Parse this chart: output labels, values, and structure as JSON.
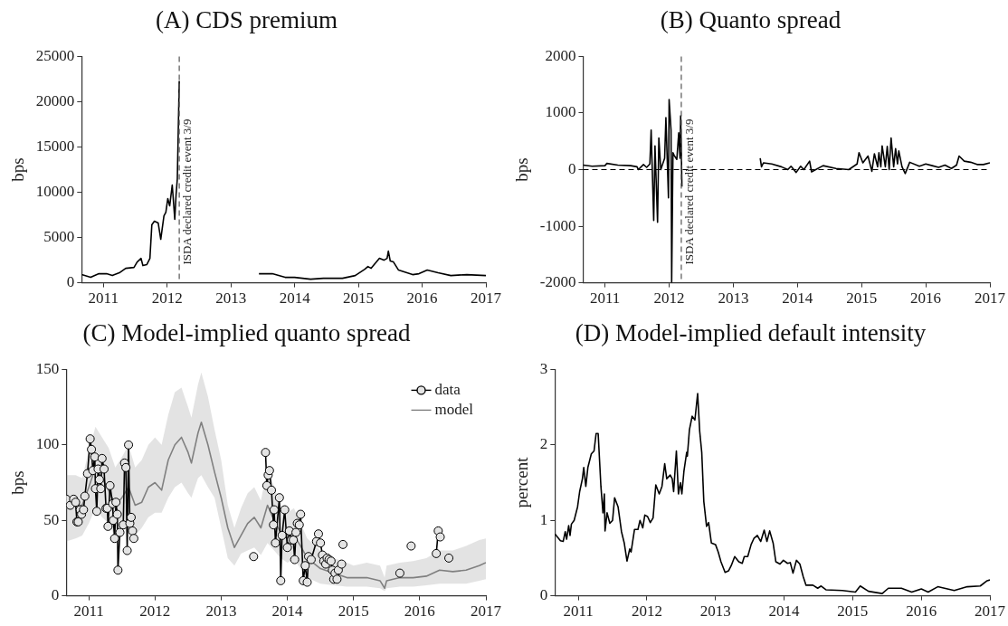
{
  "chart_data": [
    {
      "type": "line",
      "title": "(A) CDS premium",
      "ylabel": "bps",
      "xlim": [
        2010.66,
        2017
      ],
      "xticks": [
        2011,
        2012,
        2013,
        2014,
        2015,
        2016,
        2017
      ],
      "ylim": [
        0,
        25000
      ],
      "yticks": [
        0,
        5000,
        10000,
        15000,
        20000,
        25000
      ],
      "ref_lines": [
        {
          "axis": "x",
          "value": 2012.19,
          "label": "ISDA declared credit event 3/9",
          "color": "#555555",
          "line_style": "dashed"
        }
      ],
      "series": [
        {
          "color": "#000000",
          "x": [
            2010.66,
            2010.8,
            2010.93,
            2011.05,
            2011.14,
            2011.25,
            2011.35,
            2011.48,
            2011.53,
            2011.59,
            2011.62,
            2011.68,
            2011.73,
            2011.76,
            2011.8,
            2011.86,
            2011.9,
            2011.95,
            2011.98,
            2012.01,
            2012.04,
            2012.08,
            2012.12,
            2012.14,
            2012.16,
            2012.19,
            2012.8,
            2013.44,
            2013.65,
            2013.85,
            2014.0,
            2014.25,
            2014.45,
            2014.75,
            2014.95,
            2015.1,
            2015.15,
            2015.2,
            2015.33,
            2015.4,
            2015.45,
            2015.47,
            2015.5,
            2015.55,
            2015.63,
            2015.85,
            2015.95,
            2016.08,
            2016.25,
            2016.45,
            2016.7,
            2017.0
          ],
          "values": [
            900,
            600,
            1000,
            1000,
            800,
            1100,
            1600,
            1700,
            2300,
            2700,
            1900,
            2000,
            2700,
            6400,
            6800,
            6600,
            4800,
            7400,
            7800,
            9300,
            8500,
            10800,
            7000,
            9700,
            11500,
            22300,
            null,
            1000,
            1000,
            600,
            600,
            400,
            500,
            500,
            800,
            1500,
            1800,
            1600,
            2700,
            2500,
            2700,
            3500,
            2400,
            2300,
            1400,
            900,
            1000,
            1400,
            1100,
            800,
            900,
            800
          ]
        }
      ]
    },
    {
      "type": "line",
      "title": "(B) Quanto spread",
      "ylabel": "bps",
      "xlim": [
        2010.66,
        2017
      ],
      "xticks": [
        2011,
        2012,
        2013,
        2014,
        2015,
        2016,
        2017
      ],
      "ylim": [
        -2000,
        2000
      ],
      "yticks": [
        -2000,
        -1000,
        0,
        1000,
        2000
      ],
      "ref_lines": [
        {
          "axis": "x",
          "value": 2012.19,
          "label": "ISDA declared credit event 3/9",
          "color": "#555555",
          "line_style": "dashed"
        },
        {
          "axis": "y",
          "value": 0,
          "color": "#000000",
          "line_style": "dashed"
        }
      ],
      "series": [
        {
          "color": "#000000",
          "x": [
            2010.66,
            2010.8,
            2011.0,
            2011.03,
            2011.2,
            2011.4,
            2011.5,
            2011.52,
            2011.6,
            2011.65,
            2011.7,
            2011.72,
            2011.76,
            2011.78,
            2011.82,
            2011.84,
            2011.87,
            2011.93,
            2011.95,
            2011.99,
            2012.0,
            2012.03,
            2012.04,
            2012.06,
            2012.08,
            2012.12,
            2012.15,
            2012.17,
            2012.18,
            2012.2,
            2012.8,
            2013.42,
            2013.44,
            2013.47,
            2013.6,
            2013.75,
            2013.85,
            2013.9,
            2013.98,
            2014.05,
            2014.1,
            2014.19,
            2014.22,
            2014.4,
            2014.6,
            2014.8,
            2014.93,
            2014.96,
            2015.02,
            2015.1,
            2015.16,
            2015.2,
            2015.25,
            2015.27,
            2015.3,
            2015.32,
            2015.37,
            2015.4,
            2015.43,
            2015.46,
            2015.5,
            2015.53,
            2015.56,
            2015.58,
            2015.63,
            2015.68,
            2015.75,
            2015.9,
            2016.0,
            2016.1,
            2016.2,
            2016.3,
            2016.4,
            2016.48,
            2016.52,
            2016.6,
            2016.7,
            2016.8,
            2016.9,
            2017.0
          ],
          "values": [
            80,
            60,
            70,
            110,
            80,
            70,
            50,
            0,
            90,
            40,
            100,
            700,
            -900,
            420,
            -930,
            560,
            0,
            200,
            920,
            -500,
            1240,
            700,
            -1990,
            300,
            250,
            180,
            650,
            200,
            950,
            -300,
            null,
            200,
            50,
            120,
            100,
            50,
            0,
            60,
            -50,
            60,
            0,
            150,
            -40,
            70,
            20,
            0,
            100,
            300,
            120,
            240,
            -30,
            280,
            50,
            300,
            50,
            420,
            50,
            410,
            0,
            560,
            50,
            370,
            100,
            330,
            50,
            -70,
            130,
            60,
            100,
            70,
            40,
            80,
            20,
            80,
            240,
            150,
            130,
            90,
            90,
            120
          ]
        }
      ]
    },
    {
      "type": "line",
      "title": "(C) Model-implied quanto spread",
      "ylabel": "bps",
      "xlim": [
        2010.66,
        2017
      ],
      "xticks": [
        2011,
        2012,
        2013,
        2014,
        2015,
        2016,
        2017
      ],
      "ylim": [
        0,
        150
      ],
      "yticks": [
        0,
        50,
        100,
        150
      ],
      "legend": "top right",
      "series": [
        {
          "name": "data",
          "color": "#000000",
          "marker": "circle",
          "x": [
            2010.66,
            2010.72,
            2010.77,
            2010.8,
            2010.82,
            2010.84,
            2010.87,
            2010.89,
            2010.92,
            2010.94,
            2010.98,
            2011.02,
            2011.04,
            2011.06,
            2011.09,
            2011.1,
            2011.12,
            2011.14,
            2011.16,
            2011.18,
            2011.2,
            2011.23,
            2011.26,
            2011.28,
            2011.29,
            2011.32,
            2011.36,
            2011.37,
            2011.39,
            2011.41,
            2011.43,
            2011.44,
            2011.47,
            2011.52,
            2011.54,
            2011.56,
            2011.58,
            2011.6,
            2011.62,
            2011.64,
            2011.66,
            2011.68,
            2012.5,
            2013.49,
            2013.6,
            2013.67,
            2013.69,
            2013.71,
            2013.73,
            2013.76,
            2013.79,
            2013.8,
            2013.82,
            2013.88,
            2013.9,
            2013.92,
            2013.96,
            2014.0,
            2014.03,
            2014.06,
            2014.09,
            2014.11,
            2014.13,
            2014.15,
            2014.18,
            2014.2,
            2014.24,
            2014.27,
            2014.3,
            2014.32,
            2014.36,
            2014.44,
            2014.47,
            2014.5,
            2014.53,
            2014.55,
            2014.58,
            2014.6,
            2014.63,
            2014.66,
            2014.68,
            2014.7,
            2014.72,
            2014.75,
            2014.77,
            2014.82,
            2014.83,
            2014.84,
            2015.0,
            2015.7,
            2015.8,
            2015.87,
            2016.0,
            2016.25,
            2016.28,
            2016.31,
            2016.4,
            2016.44
          ],
          "values": [
            64,
            60,
            64,
            62,
            49,
            49,
            57,
            54,
            57,
            66,
            81,
            104,
            97,
            83,
            92,
            71,
            56,
            84,
            77,
            71,
            91,
            84,
            58,
            58,
            46,
            73,
            61,
            50,
            38,
            62,
            54,
            17,
            42,
            47,
            88,
            85,
            30,
            100,
            48,
            52,
            43,
            38,
            null,
            26,
            null,
            95,
            73,
            80,
            83,
            70,
            47,
            57,
            35,
            65,
            10,
            40,
            57,
            32,
            43,
            37,
            37,
            24,
            42,
            48,
            47,
            54,
            10,
            20,
            9,
            26,
            24,
            36,
            41,
            35,
            27,
            23,
            21,
            25,
            24,
            23,
            17,
            11,
            15,
            11,
            17,
            21,
            null,
            34,
            null,
            15,
            null,
            33,
            null,
            28,
            43,
            39,
            null,
            25
          ]
        },
        {
          "name": "model",
          "color": "#808080",
          "x": [
            2010.66,
            2010.8,
            2010.9,
            2011.0,
            2011.1,
            2011.2,
            2011.3,
            2011.4,
            2011.5,
            2011.6,
            2011.7,
            2011.8,
            2011.9,
            2012.0,
            2012.1,
            2012.2,
            2012.3,
            2012.4,
            2012.5,
            2012.55,
            2012.65,
            2012.7,
            2012.8,
            2012.9,
            2013.0,
            2013.1,
            2013.2,
            2013.3,
            2013.4,
            2013.5,
            2013.6,
            2013.7,
            2013.8,
            2013.9,
            2014.0,
            2014.1,
            2014.2,
            2014.3,
            2014.5,
            2014.7,
            2014.9,
            2015.0,
            2015.2,
            2015.4,
            2015.47,
            2015.5,
            2015.7,
            2015.9,
            2016.1,
            2016.3,
            2016.5,
            2016.7,
            2016.9,
            2017.0
          ],
          "values": [
            58,
            60,
            60,
            72,
            85,
            78,
            70,
            60,
            65,
            72,
            60,
            62,
            72,
            75,
            70,
            90,
            100,
            105,
            95,
            88,
            108,
            115,
            100,
            82,
            65,
            45,
            32,
            40,
            48,
            52,
            45,
            60,
            50,
            42,
            38,
            40,
            33,
            25,
            18,
            15,
            12,
            12,
            12,
            10,
            5,
            10,
            12,
            12,
            13,
            17,
            16,
            17,
            20,
            22
          ],
          "lower": [
            36,
            38,
            40,
            48,
            58,
            52,
            48,
            38,
            42,
            48,
            40,
            45,
            52,
            55,
            55,
            65,
            72,
            75,
            68,
            65,
            78,
            80,
            72,
            65,
            45,
            25,
            20,
            28,
            30,
            32,
            27,
            35,
            30,
            25,
            22,
            24,
            18,
            12,
            8,
            7,
            6,
            6,
            6,
            5,
            3,
            5,
            6,
            6,
            7,
            8,
            8,
            8,
            10,
            11
          ],
          "upper": [
            80,
            80,
            78,
            96,
            112,
            105,
            98,
            85,
            92,
            100,
            85,
            90,
            100,
            105,
            100,
            120,
            135,
            138,
            125,
            118,
            140,
            148,
            132,
            110,
            90,
            60,
            45,
            58,
            68,
            72,
            63,
            85,
            72,
            60,
            55,
            58,
            48,
            38,
            30,
            25,
            22,
            20,
            22,
            20,
            12,
            20,
            22,
            23,
            25,
            30,
            30,
            33,
            37,
            38
          ]
        }
      ]
    },
    {
      "type": "line",
      "title": "(D) Model-implied default intensity",
      "ylabel": "percent",
      "xlim": [
        2010.66,
        2017
      ],
      "xticks": [
        2011,
        2012,
        2013,
        2014,
        2015,
        2016,
        2017
      ],
      "ylim": [
        0,
        3
      ],
      "yticks": [
        0,
        1,
        2,
        3
      ],
      "series": [
        {
          "color": "#000000",
          "x": [
            2010.66,
            2010.74,
            2010.78,
            2010.81,
            2010.83,
            2010.86,
            2010.88,
            2010.9,
            2010.94,
            2010.99,
            2011.02,
            2011.06,
            2011.08,
            2011.11,
            2011.14,
            2011.19,
            2011.23,
            2011.26,
            2011.29,
            2011.33,
            2011.36,
            2011.38,
            2011.39,
            2011.42,
            2011.46,
            2011.5,
            2011.53,
            2011.58,
            2011.63,
            2011.67,
            2011.71,
            2011.75,
            2011.77,
            2011.82,
            2011.87,
            2011.9,
            2011.94,
            2011.97,
            2012.01,
            2012.05,
            2012.09,
            2012.13,
            2012.18,
            2012.22,
            2012.26,
            2012.29,
            2012.34,
            2012.37,
            2012.39,
            2012.43,
            2012.46,
            2012.49,
            2012.51,
            2012.54,
            2012.58,
            2012.59,
            2012.62,
            2012.66,
            2012.7,
            2012.74,
            2012.77,
            2012.8,
            2012.83,
            2012.87,
            2012.9,
            2012.94,
            2013.0,
            2013.04,
            2013.08,
            2013.14,
            2013.19,
            2013.23,
            2013.28,
            2013.34,
            2013.39,
            2013.42,
            2013.47,
            2013.52,
            2013.56,
            2013.61,
            2013.66,
            2013.71,
            2013.75,
            2013.79,
            2013.84,
            2013.88,
            2013.94,
            2013.99,
            2014.05,
            2014.09,
            2014.13,
            2014.18,
            2014.23,
            2014.28,
            2014.32,
            2014.42,
            2014.49,
            2014.54,
            2014.61,
            2014.85,
            2015.04,
            2015.11,
            2015.23,
            2015.43,
            2015.52,
            2015.71,
            2015.86,
            2016.0,
            2016.1,
            2016.24,
            2016.48,
            2016.67,
            2016.86,
            2016.96,
            2017.0
          ],
          "values": [
            0.82,
            0.73,
            0.72,
            0.85,
            0.75,
            0.93,
            0.8,
            0.95,
            1.0,
            1.18,
            1.38,
            1.55,
            1.7,
            1.45,
            1.7,
            1.88,
            1.92,
            2.15,
            2.15,
            1.45,
            1.1,
            1.35,
            0.86,
            1.1,
            0.96,
            1.0,
            1.3,
            1.18,
            0.85,
            0.7,
            0.46,
            0.62,
            0.58,
            0.88,
            0.88,
            1.0,
            0.9,
            1.07,
            1.05,
            0.97,
            1.03,
            1.47,
            1.35,
            1.45,
            1.75,
            1.55,
            1.6,
            1.55,
            1.38,
            1.92,
            1.35,
            1.5,
            1.35,
            1.65,
            1.9,
            1.85,
            2.2,
            2.38,
            2.33,
            2.68,
            2.18,
            1.9,
            1.25,
            0.92,
            0.97,
            0.7,
            0.68,
            0.58,
            0.45,
            0.31,
            0.33,
            0.4,
            0.52,
            0.45,
            0.43,
            0.52,
            0.52,
            0.68,
            0.76,
            0.8,
            0.72,
            0.87,
            0.72,
            0.86,
            0.7,
            0.45,
            0.42,
            0.47,
            0.43,
            0.44,
            0.3,
            0.47,
            0.42,
            0.25,
            0.14,
            0.14,
            0.1,
            0.13,
            0.08,
            0.07,
            0.05,
            0.13,
            0.06,
            0.03,
            0.1,
            0.1,
            0.05,
            0.09,
            0.05,
            0.12,
            0.07,
            0.12,
            0.13,
            0.2,
            0.21
          ]
        }
      ]
    }
  ]
}
